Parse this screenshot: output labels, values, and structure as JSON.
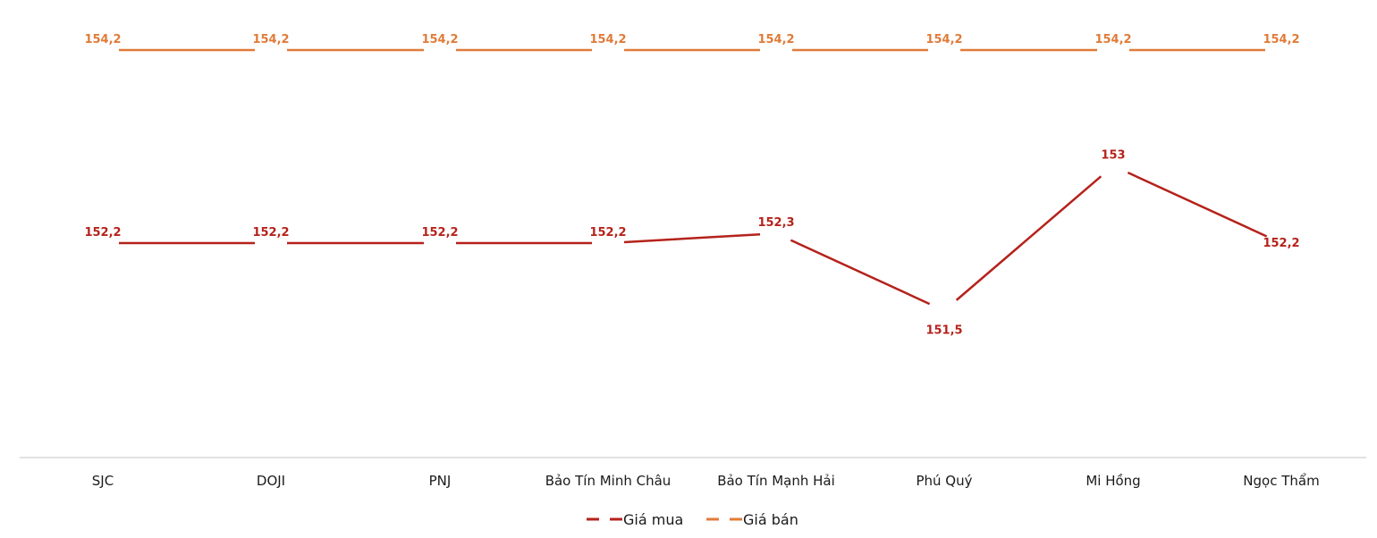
{
  "chart_data": {
    "type": "line",
    "title": "",
    "xlabel": "",
    "ylabel": "",
    "categories": [
      "SJC",
      "DOJI",
      "PNJ",
      "Bảo Tín Minh Châu",
      "Bảo Tín Mạnh Hải",
      "Phú Quý",
      "Mi Hồng",
      "Ngọc Thẩm"
    ],
    "series": [
      {
        "name": "Giá mua",
        "color": "#b5221b",
        "values": [
          152.2,
          152.2,
          152.2,
          152.2,
          152.3,
          151.5,
          153,
          152.2
        ],
        "labels": [
          "152,2",
          "152,2",
          "152,2",
          "152,2",
          "152,3",
          "151,5",
          "153",
          "152,2"
        ]
      },
      {
        "name": "Giá bán",
        "color": "#e07b39",
        "values": [
          154.2,
          154.2,
          154.2,
          154.2,
          154.2,
          154.2,
          154.2,
          154.2
        ],
        "labels": [
          "154,2",
          "154,2",
          "154,2",
          "154,2",
          "154,2",
          "154,2",
          "154,2",
          "154,2"
        ]
      }
    ],
    "grid": false,
    "legend_position": "bottom"
  },
  "legend": {
    "buy": "Giá mua",
    "sell": "Giá bán"
  }
}
